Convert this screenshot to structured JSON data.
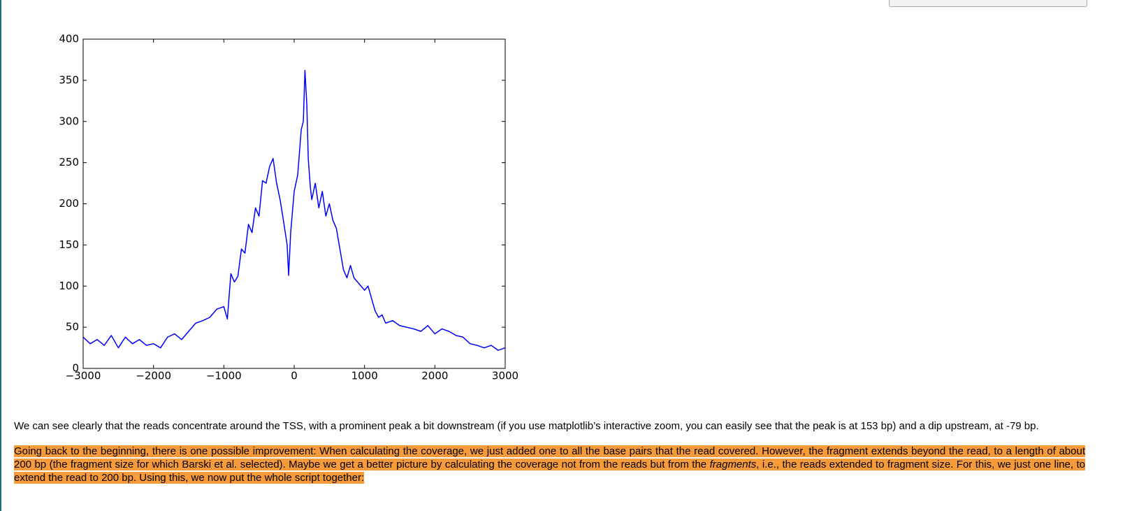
{
  "chart_data": {
    "type": "line",
    "x": [
      -3000,
      -2900,
      -2800,
      -2700,
      -2600,
      -2500,
      -2400,
      -2300,
      -2200,
      -2100,
      -2000,
      -1900,
      -1800,
      -1700,
      -1600,
      -1500,
      -1400,
      -1300,
      -1200,
      -1100,
      -1000,
      -950,
      -900,
      -850,
      -800,
      -750,
      -700,
      -650,
      -600,
      -550,
      -500,
      -450,
      -400,
      -350,
      -300,
      -250,
      -200,
      -150,
      -100,
      -79,
      -50,
      0,
      50,
      100,
      130,
      153,
      180,
      200,
      230,
      250,
      300,
      350,
      400,
      450,
      500,
      550,
      600,
      650,
      700,
      750,
      800,
      850,
      900,
      950,
      1000,
      1050,
      1100,
      1150,
      1200,
      1250,
      1300,
      1400,
      1500,
      1600,
      1700,
      1800,
      1900,
      2000,
      2100,
      2200,
      2300,
      2400,
      2500,
      2600,
      2700,
      2800,
      2900,
      3000
    ],
    "values": [
      38,
      30,
      35,
      28,
      40,
      25,
      38,
      30,
      35,
      28,
      30,
      25,
      38,
      42,
      35,
      45,
      55,
      58,
      62,
      72,
      75,
      60,
      115,
      105,
      112,
      145,
      140,
      175,
      165,
      195,
      185,
      228,
      225,
      245,
      255,
      225,
      205,
      178,
      150,
      113,
      165,
      215,
      235,
      290,
      300,
      362,
      320,
      255,
      220,
      205,
      225,
      195,
      215,
      185,
      200,
      180,
      170,
      145,
      120,
      110,
      125,
      110,
      105,
      100,
      95,
      100,
      85,
      70,
      62,
      65,
      55,
      58,
      52,
      50,
      48,
      45,
      52,
      42,
      48,
      45,
      40,
      38,
      30,
      28,
      25,
      28,
      22,
      25
    ],
    "color": "#0000ff",
    "xlim": [
      -3000,
      3000
    ],
    "xticks": [
      {
        "value": -3000,
        "label": "−3000"
      },
      {
        "value": -2000,
        "label": "−2000"
      },
      {
        "value": -1000,
        "label": "−1000"
      },
      0,
      1000,
      2000,
      3000
    ],
    "ylim": [
      0,
      400
    ],
    "yticks": [
      0,
      50,
      100,
      150,
      200,
      250,
      300,
      350,
      400
    ]
  },
  "text": {
    "paragraph_1": "We can see clearly that the reads concentrate around the TSS, with a prominent peak a bit downstream (if you use matplotlib’s interactive zoom, you can easily see that the peak is at 153 bp) and a dip upstream, at -79 bp.",
    "paragraph_2": [
      "Going back to the beginning, there is one possible improvement: When calculating the coverage, we just added one to all the base pairs that the read covered. However, the fragment extends beyond the read, to a length of about 200 bp (the fragment size for which Barski et al. selected). Maybe we get a better picture by calculating the coverage not from the reads but from the ",
      "fragments",
      ", i.e., the reads extended to fragment size. For this, we just one line, to extend the read to 200 bp. Using this, we now put the whole script together:"
    ]
  }
}
